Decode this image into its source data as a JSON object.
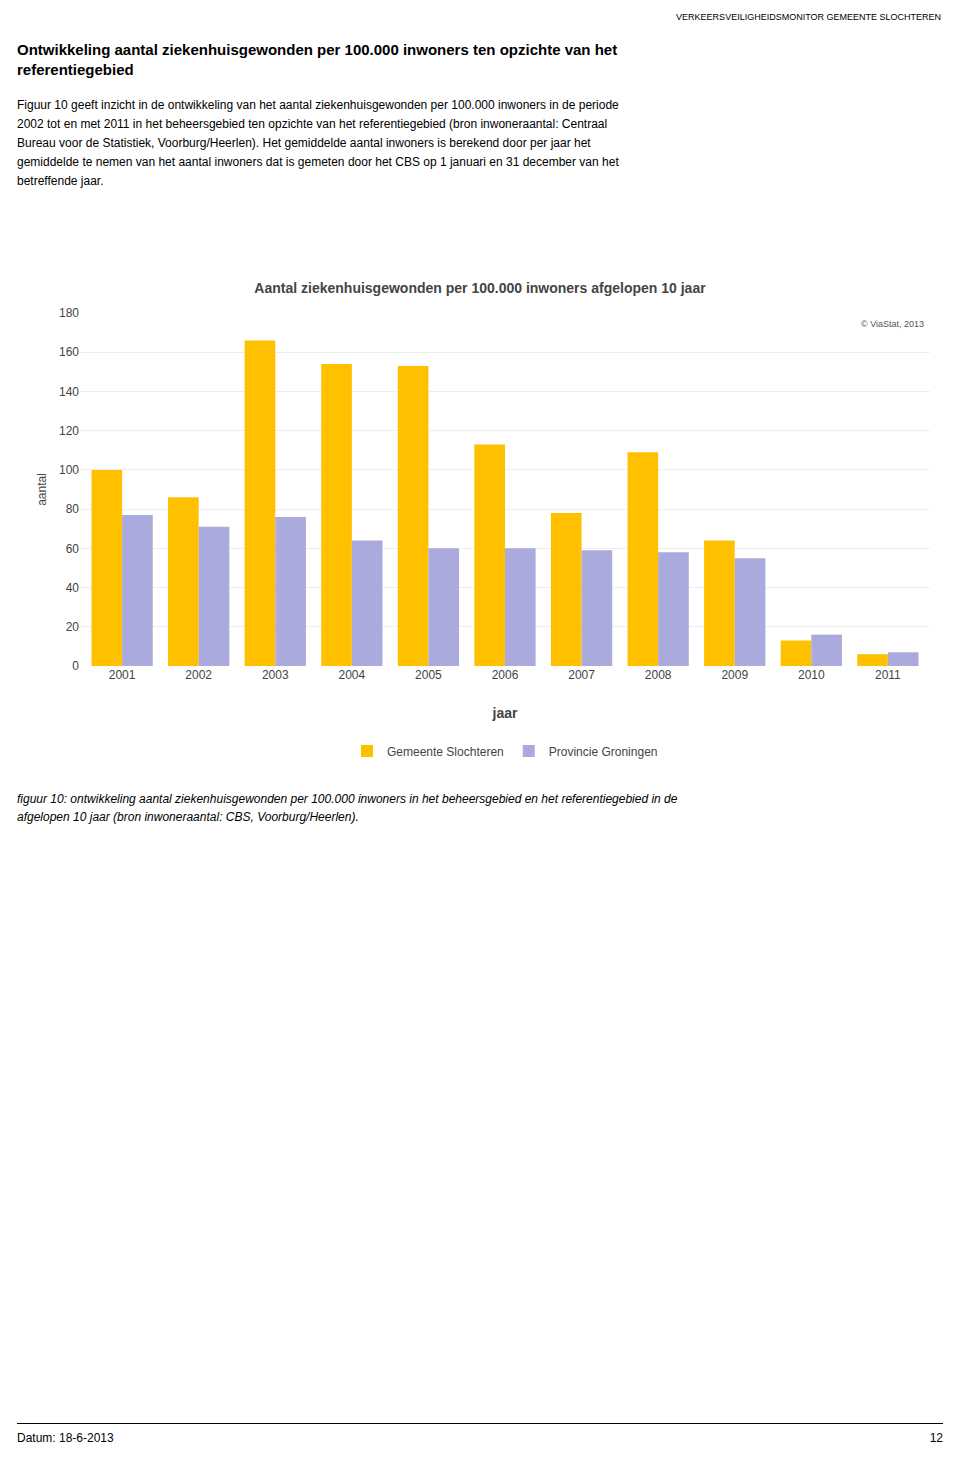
{
  "header": "VERKEERSVEILIGHEIDSMONITOR GEMEENTE SLOCHTEREN",
  "heading": [
    "Ontwikkeling aantal ziekenhuisgewonden per 100.000 inwoners ten opzichte van het",
    "referentiegebied"
  ],
  "body": [
    "Figuur 10 geeft inzicht in de ontwikkeling van het aantal ziekenhuisgewonden per 100.000 inwoners in de periode",
    "2002 tot en met 2011 in het beheersgebied ten opzichte van het referentiegebied (bron inwoneraantal: Centraal",
    "Bureau voor de Statistiek, Voorburg/Heerlen). Het gemiddelde aantal inwoners is berekend door per jaar het",
    "gemiddelde te nemen van het aantal inwoners dat is gemeten door het CBS op 1 januari en 31 december van het",
    "betreffende jaar."
  ],
  "caption": [
    "figuur 10: ontwikkeling aantal ziekenhuisgewonden per 100.000 inwoners in het beheersgebied en het referentiegebied in de",
    "afgelopen 10 jaar (bron inwoneraantal: CBS, Voorburg/Heerlen)."
  ],
  "date": "Datum: 18-6-2013",
  "page_number": "12",
  "chart_data": {
    "type": "bar",
    "title": "Aantal ziekenhuisgewonden per 100.000 inwoners afgelopen 10 jaar",
    "xlabel": "jaar",
    "ylabel": "aantal",
    "annotations": [
      "© ViaStat, 2013"
    ],
    "categories": [
      2001,
      2002,
      2003,
      2004,
      2005,
      2006,
      2007,
      2008,
      2009,
      2010,
      2011
    ],
    "series": [
      {
        "name": "Gemeente Slochteren",
        "color": "#FFC000",
        "values": [
          100,
          86,
          166,
          154,
          153,
          113,
          78,
          109,
          64,
          13,
          6
        ]
      },
      {
        "name": "Provincie Groningen",
        "color": "#AAAADD",
        "values": [
          77,
          71,
          76,
          64,
          60,
          60,
          59,
          58,
          55,
          16,
          7
        ]
      }
    ],
    "ylim": [
      0,
      180
    ],
    "yticks": [
      0,
      20,
      40,
      60,
      80,
      100,
      120,
      140,
      160,
      180
    ],
    "grid": true,
    "legend": "bottom"
  }
}
